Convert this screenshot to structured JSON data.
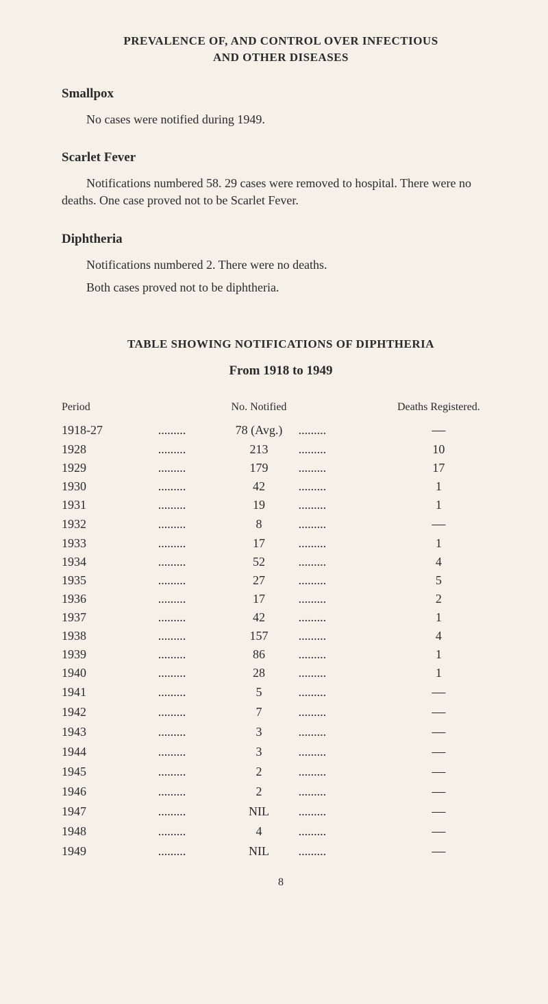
{
  "heading_line1": "PREVALENCE OF, AND CONTROL OVER INFECTIOUS",
  "heading_line2": "AND OTHER DISEASES",
  "sections": {
    "smallpox": {
      "title": "Smallpox",
      "text": "No cases were notified during 1949."
    },
    "scarlet": {
      "title": "Scarlet Fever",
      "text": "Notifications numbered 58.   29 cases were removed to hospital. There were no deaths.  One case proved not to be Scarlet Fever."
    },
    "diphtheria": {
      "title": "Diphtheria",
      "text1": "Notifications numbered 2.  There were no deaths.",
      "text2": "Both cases proved not to be diphtheria."
    }
  },
  "table_heading": "TABLE SHOWING NOTIFICATIONS OF DIPHTHERIA",
  "table_subheading": "From 1918 to 1949",
  "table_headers": {
    "period": "Period",
    "notified": "No. Notified",
    "deaths": "Deaths Registered."
  },
  "dots": ".........",
  "rows": [
    {
      "period": "1918-27",
      "notified": "78 (Avg.)",
      "deaths": "—"
    },
    {
      "period": "1928",
      "notified": "213",
      "deaths": "10"
    },
    {
      "period": "1929",
      "notified": "179",
      "deaths": "17"
    },
    {
      "period": "1930",
      "notified": "42",
      "deaths": "1"
    },
    {
      "period": "1931",
      "notified": "19",
      "deaths": "1"
    },
    {
      "period": "1932",
      "notified": "8",
      "deaths": "—"
    },
    {
      "period": "1933",
      "notified": "17",
      "deaths": "1"
    },
    {
      "period": "1934",
      "notified": "52",
      "deaths": "4"
    },
    {
      "period": "1935",
      "notified": "27",
      "deaths": "5"
    },
    {
      "period": "1936",
      "notified": "17",
      "deaths": "2"
    },
    {
      "period": "1937",
      "notified": "42",
      "deaths": "1"
    },
    {
      "period": "1938",
      "notified": "157",
      "deaths": "4"
    },
    {
      "period": "1939",
      "notified": "86",
      "deaths": "1"
    },
    {
      "period": "1940",
      "notified": "28",
      "deaths": "1"
    },
    {
      "period": "1941",
      "notified": "5",
      "deaths": "—"
    },
    {
      "period": "1942",
      "notified": "7",
      "deaths": "—"
    },
    {
      "period": "1943",
      "notified": "3",
      "deaths": "—"
    },
    {
      "period": "1944",
      "notified": "3",
      "deaths": "—"
    },
    {
      "period": "1945",
      "notified": "2",
      "deaths": "—"
    },
    {
      "period": "1946",
      "notified": "2",
      "deaths": "—"
    },
    {
      "period": "1947",
      "notified": "NIL",
      "deaths": "—"
    },
    {
      "period": "1948",
      "notified": "4",
      "deaths": "—"
    },
    {
      "period": "1949",
      "notified": "NIL",
      "deaths": "—"
    }
  ],
  "page_number": "8",
  "colors": {
    "background": "#f5f0e8",
    "text": "#2a2a2a"
  },
  "typography": {
    "body_fontsize": 18,
    "heading_fontsize": 17,
    "section_heading_fontsize": 19
  }
}
